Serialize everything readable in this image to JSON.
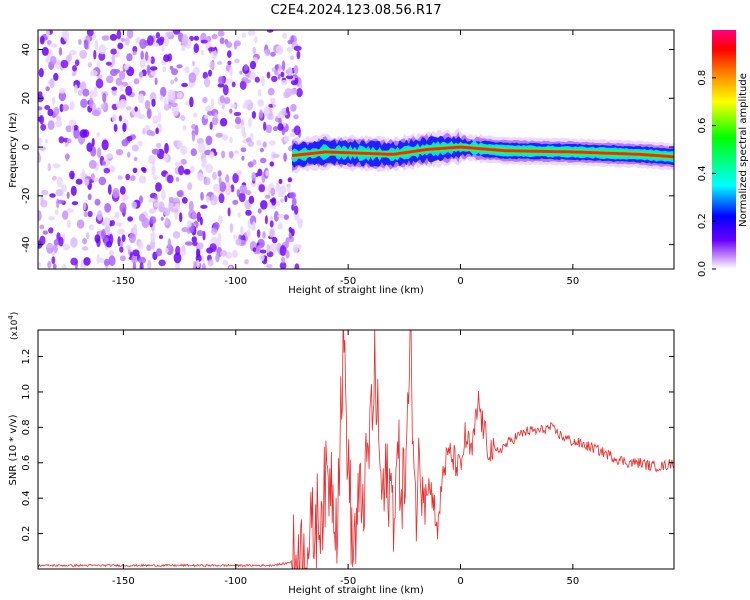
{
  "title": "C2E4.2024.123.08.56.R17",
  "chart_data": [
    {
      "type": "heatmap",
      "xlabel": "Height of straight line (km)",
      "ylabel": "Frequency (Hz)",
      "xlim": [
        -188,
        95
      ],
      "ylim": [
        -50,
        48
      ],
      "x_ticks": [
        "-150",
        "-100",
        "-50",
        "0",
        "50"
      ],
      "x_tick_values": [
        -150,
        -100,
        -50,
        0,
        50
      ],
      "y_ticks": [
        "-40",
        "-20",
        "0",
        "20",
        "40"
      ],
      "y_tick_values": [
        -40,
        -20,
        0,
        20,
        40
      ],
      "noise_region_x": [
        -188,
        -75
      ],
      "signal_line_x": [
        -75,
        95
      ],
      "signal_freq_hz": [
        {
          "x": -75,
          "f": -3.5
        },
        {
          "x": -60,
          "f": -2.0
        },
        {
          "x": -45,
          "f": -2.5
        },
        {
          "x": -30,
          "f": -3.0
        },
        {
          "x": -15,
          "f": -1.0
        },
        {
          "x": 0,
          "f": 0.0
        },
        {
          "x": 20,
          "f": -1.5
        },
        {
          "x": 50,
          "f": -2.0
        },
        {
          "x": 80,
          "f": -3.0
        },
        {
          "x": 95,
          "f": -4.0
        }
      ],
      "colorbar": {
        "label": "Normalized spectral amplitude",
        "range": [
          0,
          1
        ],
        "ticks": [
          "0.0",
          "0.2",
          "0.4",
          "0.6",
          "0.8"
        ],
        "tick_values": [
          0,
          0.2,
          0.4,
          0.6,
          0.8
        ],
        "colors": [
          "#ffffff",
          "#c890ff",
          "#6a00ff",
          "#0000ff",
          "#00ffff",
          "#00ff00",
          "#ffff00",
          "#ff8000",
          "#ff0000",
          "#ff0080"
        ]
      },
      "grid": false
    },
    {
      "type": "line",
      "xlabel": "Height of straight line (km)",
      "ylabel": "SNR (10 * v/v)",
      "y_scale_label": "(x10",
      "y_scale_exp": "4",
      "y_scale_close": ")",
      "xlim": [
        -188,
        95
      ],
      "ylim": [
        0,
        1.35
      ],
      "x_ticks": [
        "-150",
        "-100",
        "-50",
        "0",
        "50"
      ],
      "x_tick_values": [
        -150,
        -100,
        -50,
        0,
        50
      ],
      "y_ticks": [
        "0.2",
        "0.4",
        "0.6",
        "0.8",
        "1.0",
        "1.2"
      ],
      "y_tick_values": [
        0.2,
        0.4,
        0.6,
        0.8,
        1.0,
        1.2
      ],
      "series_color": "#ee2a2a",
      "series": [
        {
          "x": [
            -188,
            -150,
            -120,
            -100,
            -85,
            -78,
            -72,
            -68,
            -62,
            -58,
            -55,
            -52,
            -50,
            -48,
            -45,
            -42,
            -38,
            -35,
            -32,
            -30,
            -28,
            -25,
            -22,
            -20,
            -18,
            -15,
            -12,
            -10,
            -8,
            -5,
            -2,
            0,
            2,
            5,
            7,
            8,
            10,
            12,
            15,
            20,
            25,
            30,
            35,
            40,
            45,
            50,
            55,
            60,
            65,
            70,
            75,
            80,
            85,
            90,
            95
          ],
          "y": [
            0.02,
            0.02,
            0.02,
            0.02,
            0.02,
            0.03,
            0.06,
            0.12,
            0.35,
            0.55,
            0.3,
            1.32,
            0.6,
            0.1,
            0.35,
            0.5,
            1.12,
            0.4,
            0.5,
            0.35,
            0.6,
            0.45,
            1.25,
            0.35,
            0.6,
            0.5,
            0.4,
            0.2,
            0.55,
            0.65,
            0.6,
            0.55,
            0.75,
            0.65,
            0.85,
            0.95,
            0.8,
            0.7,
            0.65,
            0.7,
            0.75,
            0.78,
            0.78,
            0.8,
            0.75,
            0.72,
            0.7,
            0.68,
            0.65,
            0.62,
            0.6,
            0.6,
            0.58,
            0.58,
            0.6
          ]
        }
      ],
      "grid": false
    }
  ]
}
